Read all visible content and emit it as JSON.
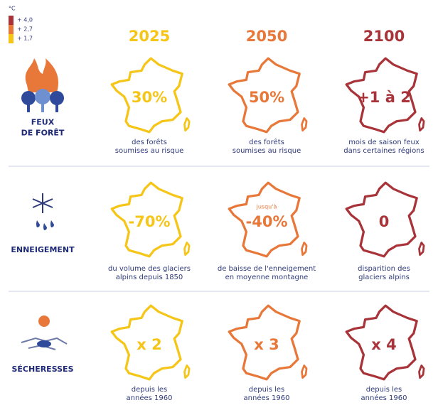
{
  "legend": {
    "unit": "°C",
    "items": [
      "+ 4,0",
      "+ 2,7",
      "+ 1,7"
    ]
  },
  "years": [
    "2025",
    "2050",
    "2100"
  ],
  "rows": [
    {
      "label": [
        "FEUX",
        "DE FORÊT"
      ],
      "cells": [
        {
          "value": "30%",
          "caption": [
            "des forêts",
            "soumises au risque"
          ]
        },
        {
          "value": "50%",
          "caption": [
            "des forêts",
            "soumises au risque"
          ]
        },
        {
          "value": "+1 à 2",
          "caption": [
            "mois de saison feux",
            "dans certaines régions"
          ]
        }
      ]
    },
    {
      "label": [
        "ENNEIGEMENT"
      ],
      "cells": [
        {
          "value": "-70%",
          "caption": [
            "du volume des glaciers",
            "alpins depuis 1850"
          ]
        },
        {
          "prefix": "jusqu'à",
          "value": "-40%",
          "caption": [
            "de baisse de l'enneigement",
            "en moyenne montagne"
          ]
        },
        {
          "value": "0",
          "caption": [
            "disparition des",
            "glaciers alpins"
          ]
        }
      ]
    },
    {
      "label": [
        "SÉCHERESSES"
      ],
      "cells": [
        {
          "value": "x 2",
          "caption": [
            "depuis les",
            "années 1960"
          ]
        },
        {
          "value": "x 3",
          "caption": [
            "depuis les",
            "années 1960"
          ]
        },
        {
          "value": "x 4",
          "caption": [
            "depuis les",
            "années 1960"
          ]
        }
      ]
    }
  ]
}
